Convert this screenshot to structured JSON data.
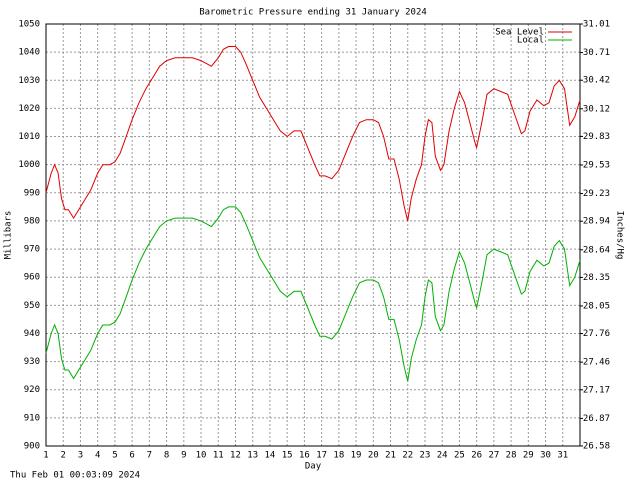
{
  "chart_data": {
    "type": "line",
    "title": "Barometric Pressure ending 31 January 2024",
    "xlabel": "Day",
    "ylabel": "Millibars",
    "y2label": "Inches/Hg",
    "footer": "Thu Feb 01 00:03:09 2024",
    "grid": true,
    "legend": "upper right",
    "xlim": [
      1,
      32
    ],
    "xticks": [
      1,
      2,
      3,
      4,
      5,
      6,
      7,
      8,
      9,
      10,
      11,
      12,
      13,
      14,
      15,
      16,
      17,
      18,
      19,
      20,
      21,
      22,
      23,
      24,
      25,
      26,
      27,
      28,
      29,
      30,
      31
    ],
    "ylim": [
      900,
      1050
    ],
    "yticks": [
      900,
      910,
      920,
      930,
      940,
      950,
      960,
      970,
      980,
      990,
      1000,
      1010,
      1020,
      1030,
      1040,
      1050
    ],
    "y2lim": [
      26.58,
      31.01
    ],
    "y2ticks": [
      26.58,
      26.87,
      27.17,
      27.46,
      27.76,
      28.05,
      28.35,
      28.64,
      28.94,
      29.23,
      29.53,
      29.83,
      30.12,
      30.42,
      30.71,
      31.01
    ],
    "x": [
      1.0,
      1.3,
      1.5,
      1.7,
      1.9,
      2.1,
      2.3,
      2.6,
      2.9,
      3.2,
      3.6,
      4.0,
      4.3,
      4.7,
      5.0,
      5.3,
      5.6,
      6.0,
      6.4,
      6.8,
      7.2,
      7.6,
      8.0,
      8.5,
      9.0,
      9.5,
      10.0,
      10.3,
      10.6,
      11.0,
      11.3,
      11.6,
      12.0,
      12.3,
      12.6,
      13.0,
      13.4,
      13.8,
      14.2,
      14.6,
      15.0,
      15.4,
      15.8,
      16.2,
      16.6,
      16.9,
      17.2,
      17.6,
      18.0,
      18.4,
      18.8,
      19.2,
      19.6,
      20.0,
      20.3,
      20.6,
      20.9,
      21.2,
      21.5,
      21.8,
      22.0,
      22.2,
      22.5,
      22.8,
      23.0,
      23.2,
      23.4,
      23.6,
      23.9,
      24.1,
      24.4,
      24.7,
      25.0,
      25.3,
      25.6,
      25.9,
      26.0,
      26.3,
      26.6,
      27.0,
      27.4,
      27.8,
      28.2,
      28.6,
      28.8,
      29.1,
      29.5,
      29.9,
      30.2,
      30.5,
      30.8,
      31.1,
      31.4,
      31.7,
      32.0
    ],
    "series": [
      {
        "name": "Sea Level",
        "color": "#e00000",
        "values": [
          990,
          997,
          1000,
          997,
          988,
          984,
          984,
          981,
          984,
          987,
          991,
          997,
          1000,
          1000,
          1001,
          1004,
          1009,
          1016,
          1022,
          1027,
          1031,
          1035,
          1037,
          1038,
          1038,
          1038,
          1037,
          1036,
          1035,
          1038,
          1041,
          1042,
          1042,
          1040,
          1036,
          1030,
          1024,
          1020,
          1016,
          1012,
          1010,
          1012,
          1012,
          1006,
          1000,
          996,
          996,
          995,
          998,
          1004,
          1010,
          1015,
          1016,
          1016,
          1015,
          1010,
          1002,
          1002,
          995,
          985,
          980,
          988,
          995,
          1000,
          1010,
          1016,
          1015,
          1003,
          998,
          1000,
          1012,
          1020,
          1026,
          1022,
          1015,
          1008,
          1006,
          1015,
          1025,
          1027,
          1026,
          1025,
          1018,
          1011,
          1012,
          1019,
          1023,
          1021,
          1022,
          1028,
          1030,
          1027,
          1014,
          1017,
          1023
        ]
      },
      {
        "name": "Local",
        "color": "#00b000",
        "values": [
          933,
          940,
          943,
          940,
          931,
          927,
          927,
          924,
          927,
          930,
          934,
          940,
          943,
          943,
          944,
          947,
          952,
          959,
          965,
          970,
          974,
          978,
          980,
          981,
          981,
          981,
          980,
          979,
          978,
          981,
          984,
          985,
          985,
          983,
          979,
          973,
          967,
          963,
          959,
          955,
          953,
          955,
          955,
          949,
          943,
          939,
          939,
          938,
          941,
          947,
          953,
          958,
          959,
          959,
          958,
          953,
          945,
          945,
          938,
          928,
          923,
          931,
          938,
          943,
          953,
          959,
          958,
          946,
          941,
          943,
          955,
          963,
          969,
          965,
          958,
          951,
          949,
          958,
          968,
          970,
          969,
          968,
          961,
          954,
          955,
          962,
          966,
          964,
          965,
          971,
          973,
          970,
          957,
          960,
          966
        ]
      }
    ]
  }
}
